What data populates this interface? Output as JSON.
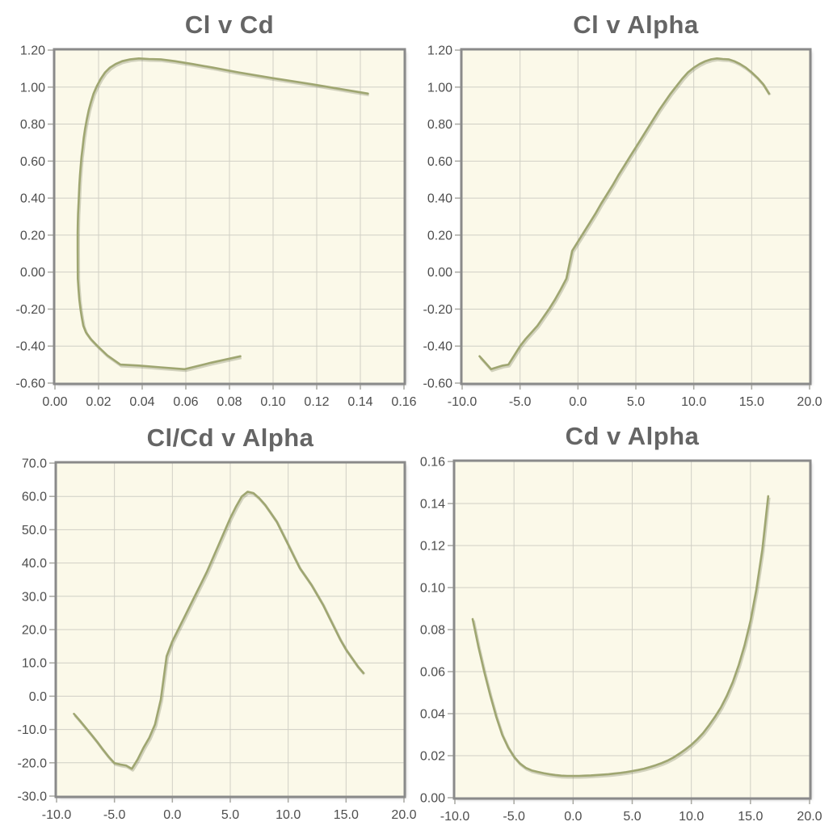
{
  "chart_data": [
    {
      "type": "line",
      "title": "Cl v Cd",
      "xlabel": "",
      "ylabel": "",
      "xlim": [
        0,
        0.16
      ],
      "ylim": [
        -0.6,
        1.2
      ],
      "grid": true,
      "legend": false,
      "xtick_values": [
        0,
        0.02,
        0.04,
        0.06,
        0.08,
        0.1,
        0.12,
        0.14,
        0.16
      ],
      "xtick_labels": [
        "0.00",
        "0.02",
        "0.04",
        "0.06",
        "0.08",
        "0.10",
        "0.12",
        "0.14",
        "0.16"
      ],
      "ytick_values": [
        1.2,
        1.0,
        0.8,
        0.6,
        0.4,
        0.2,
        0.0,
        -0.2,
        -0.4,
        -0.6
      ],
      "ytick_labels": [
        "1.20",
        "1.00",
        "0.80",
        "0.60",
        "0.40",
        "0.20",
        "0.00",
        "-0.20",
        "-0.40",
        "-0.60"
      ],
      "x": [
        0.085,
        0.0715,
        0.0595,
        0.0485,
        0.0385,
        0.03,
        0.024,
        0.0195,
        0.0163,
        0.0142,
        0.013,
        0.0123,
        0.0117,
        0.0112,
        0.0108,
        0.0105,
        0.0104,
        0.0104,
        0.0104,
        0.0105,
        0.0106,
        0.0108,
        0.011,
        0.0112,
        0.0115,
        0.0118,
        0.0122,
        0.0127,
        0.0132,
        0.0138,
        0.0146,
        0.0155,
        0.0165,
        0.0177,
        0.0192,
        0.021,
        0.023,
        0.0252,
        0.0278,
        0.0308,
        0.0345,
        0.0385,
        0.043,
        0.0485,
        0.055,
        0.063,
        0.0725,
        0.084,
        0.099,
        0.118,
        0.1435
      ],
      "y": [
        -0.455,
        -0.49,
        -0.525,
        -0.515,
        -0.505,
        -0.5,
        -0.45,
        -0.4,
        -0.36,
        -0.325,
        -0.29,
        -0.245,
        -0.2,
        -0.15,
        -0.095,
        -0.035,
        0.115,
        0.165,
        0.215,
        0.265,
        0.315,
        0.37,
        0.42,
        0.47,
        0.525,
        0.575,
        0.625,
        0.675,
        0.725,
        0.775,
        0.825,
        0.875,
        0.92,
        0.965,
        1.005,
        1.045,
        1.08,
        1.105,
        1.125,
        1.14,
        1.15,
        1.155,
        1.152,
        1.15,
        1.14,
        1.125,
        1.105,
        1.08,
        1.05,
        1.015,
        0.965
      ]
    },
    {
      "type": "line",
      "title": "Cl v Alpha",
      "xlabel": "",
      "ylabel": "",
      "xlim": [
        -10,
        20
      ],
      "ylim": [
        -0.6,
        1.2
      ],
      "grid": true,
      "legend": false,
      "xtick_values": [
        -10,
        -5,
        0,
        5,
        10,
        15,
        20
      ],
      "xtick_labels": [
        "-10.0",
        "-5.0",
        "0.0",
        "5.0",
        "10.0",
        "15.0",
        "20.0"
      ],
      "ytick_values": [
        1.2,
        1.0,
        0.8,
        0.6,
        0.4,
        0.2,
        0.0,
        -0.2,
        -0.4,
        -0.6
      ],
      "ytick_labels": [
        "1.20",
        "1.00",
        "0.80",
        "0.60",
        "0.40",
        "0.20",
        "0.00",
        "-0.20",
        "-0.40",
        "-0.60"
      ],
      "x": [
        -8.5,
        -8,
        -7.5,
        -7,
        -6.5,
        -6,
        -5.5,
        -5,
        -4.5,
        -4,
        -3.5,
        -3,
        -2.5,
        -2,
        -1.5,
        -1,
        -0.5,
        0,
        0.5,
        1,
        1.5,
        2,
        2.5,
        3,
        3.5,
        4,
        4.5,
        5,
        5.5,
        6,
        6.5,
        7,
        7.5,
        8,
        8.5,
        9,
        9.5,
        10,
        10.5,
        11,
        11.5,
        12,
        12.5,
        13,
        13.5,
        14,
        14.5,
        15,
        15.5,
        16,
        16.5
      ],
      "y": [
        -0.455,
        -0.49,
        -0.525,
        -0.515,
        -0.505,
        -0.5,
        -0.45,
        -0.4,
        -0.36,
        -0.325,
        -0.29,
        -0.245,
        -0.2,
        -0.15,
        -0.095,
        -0.035,
        0.115,
        0.165,
        0.215,
        0.265,
        0.315,
        0.37,
        0.42,
        0.47,
        0.525,
        0.575,
        0.625,
        0.675,
        0.725,
        0.775,
        0.825,
        0.875,
        0.92,
        0.965,
        1.005,
        1.045,
        1.08,
        1.105,
        1.125,
        1.14,
        1.15,
        1.155,
        1.152,
        1.15,
        1.14,
        1.125,
        1.105,
        1.08,
        1.05,
        1.015,
        0.965
      ]
    },
    {
      "type": "line",
      "title": "Cl/Cd v Alpha",
      "xlabel": "",
      "ylabel": "",
      "xlim": [
        -10,
        20
      ],
      "ylim": [
        -30,
        70
      ],
      "grid": true,
      "legend": false,
      "xtick_values": [
        -10,
        -5,
        0,
        5,
        10,
        15,
        20
      ],
      "xtick_labels": [
        "-10.0",
        "-5.0",
        "0.0",
        "5.0",
        "10.0",
        "15.0",
        "20.0"
      ],
      "ytick_values": [
        70,
        60,
        50,
        40,
        30,
        20,
        10,
        0,
        -10,
        -20,
        -30
      ],
      "ytick_labels": [
        "70.0",
        "60.0",
        "50.0",
        "40.0",
        "30.0",
        "20.0",
        "10.0",
        "0.0",
        "-10.0",
        "-20.0",
        "-30.0"
      ],
      "x": [
        -8.5,
        -8,
        -7.5,
        -7,
        -6.5,
        -6,
        -5.5,
        -5,
        -4.5,
        -4,
        -3.5,
        -3,
        -2.5,
        -2,
        -1.5,
        -1,
        -0.5,
        0,
        0.5,
        1,
        1.5,
        2,
        2.5,
        3,
        3.5,
        4,
        4.5,
        5,
        5.5,
        6,
        6.5,
        7,
        7.5,
        8,
        8.5,
        9,
        9.5,
        10,
        10.5,
        11,
        11.5,
        12,
        12.5,
        13,
        13.5,
        14,
        14.5,
        15,
        15.5,
        16,
        16.5
      ],
      "y": [
        -5.3,
        -7.3,
        -9.4,
        -11.5,
        -13.7,
        -16,
        -18.2,
        -20.1,
        -20.5,
        -20.8,
        -21.8,
        -19,
        -15.5,
        -12.5,
        -8.5,
        -1,
        12,
        16.5,
        20,
        23.5,
        27,
        30.5,
        34,
        37.5,
        41.5,
        45.5,
        49.5,
        53.5,
        57,
        60,
        61.4,
        61,
        59.5,
        57.5,
        55,
        52.5,
        49,
        45.5,
        42,
        38.5,
        36,
        33.5,
        30.5,
        27.5,
        24,
        20.5,
        17,
        14,
        11.5,
        9,
        7
      ]
    },
    {
      "type": "line",
      "title": "Cd v Alpha",
      "xlabel": "",
      "ylabel": "",
      "xlim": [
        -10,
        20
      ],
      "ylim": [
        0,
        0.16
      ],
      "grid": true,
      "legend": false,
      "xtick_values": [
        -10,
        -5,
        0,
        5,
        10,
        15,
        20
      ],
      "xtick_labels": [
        "-10.0",
        "-5.0",
        "0.0",
        "5.0",
        "10.0",
        "15.0",
        "20.0"
      ],
      "ytick_values": [
        0.16,
        0.14,
        0.12,
        0.1,
        0.08,
        0.06,
        0.04,
        0.02,
        0.0
      ],
      "ytick_labels": [
        "0.16",
        "0.14",
        "0.12",
        "0.10",
        "0.08",
        "0.06",
        "0.04",
        "0.02",
        "0.00"
      ],
      "x": [
        -8.5,
        -8,
        -7.5,
        -7,
        -6.5,
        -6,
        -5.5,
        -5,
        -4.5,
        -4,
        -3.5,
        -3,
        -2.5,
        -2,
        -1.5,
        -1,
        -0.5,
        0,
        0.5,
        1,
        1.5,
        2,
        2.5,
        3,
        3.5,
        4,
        4.5,
        5,
        5.5,
        6,
        6.5,
        7,
        7.5,
        8,
        8.5,
        9,
        9.5,
        10,
        10.5,
        11,
        11.5,
        12,
        12.5,
        13,
        13.5,
        14,
        14.5,
        15,
        15.5,
        16,
        16.5
      ],
      "y": [
        0.085,
        0.0715,
        0.0595,
        0.0485,
        0.0385,
        0.03,
        0.024,
        0.0195,
        0.0163,
        0.0142,
        0.013,
        0.0123,
        0.0117,
        0.0112,
        0.0108,
        0.0105,
        0.0104,
        0.0104,
        0.0104,
        0.0105,
        0.0106,
        0.0108,
        0.011,
        0.0112,
        0.0115,
        0.0118,
        0.0122,
        0.0127,
        0.0132,
        0.0138,
        0.0146,
        0.0155,
        0.0165,
        0.0177,
        0.0192,
        0.021,
        0.023,
        0.0252,
        0.0278,
        0.0308,
        0.0345,
        0.0385,
        0.043,
        0.0485,
        0.055,
        0.063,
        0.0725,
        0.084,
        0.099,
        0.118,
        0.1435
      ]
    }
  ],
  "style": {
    "line_color": "#9fa671",
    "line_shadow_color": "rgba(105,110,75,0.28)",
    "plot_background": "#fbf9e9",
    "grid_color": "#d0cfc5",
    "border_color": "#8a8a8a",
    "tick_mark_color": "#a8a8a2",
    "tick_text_color": "#4d4d4d",
    "title_text_color": "#656565",
    "page_background": "#ffffff"
  }
}
